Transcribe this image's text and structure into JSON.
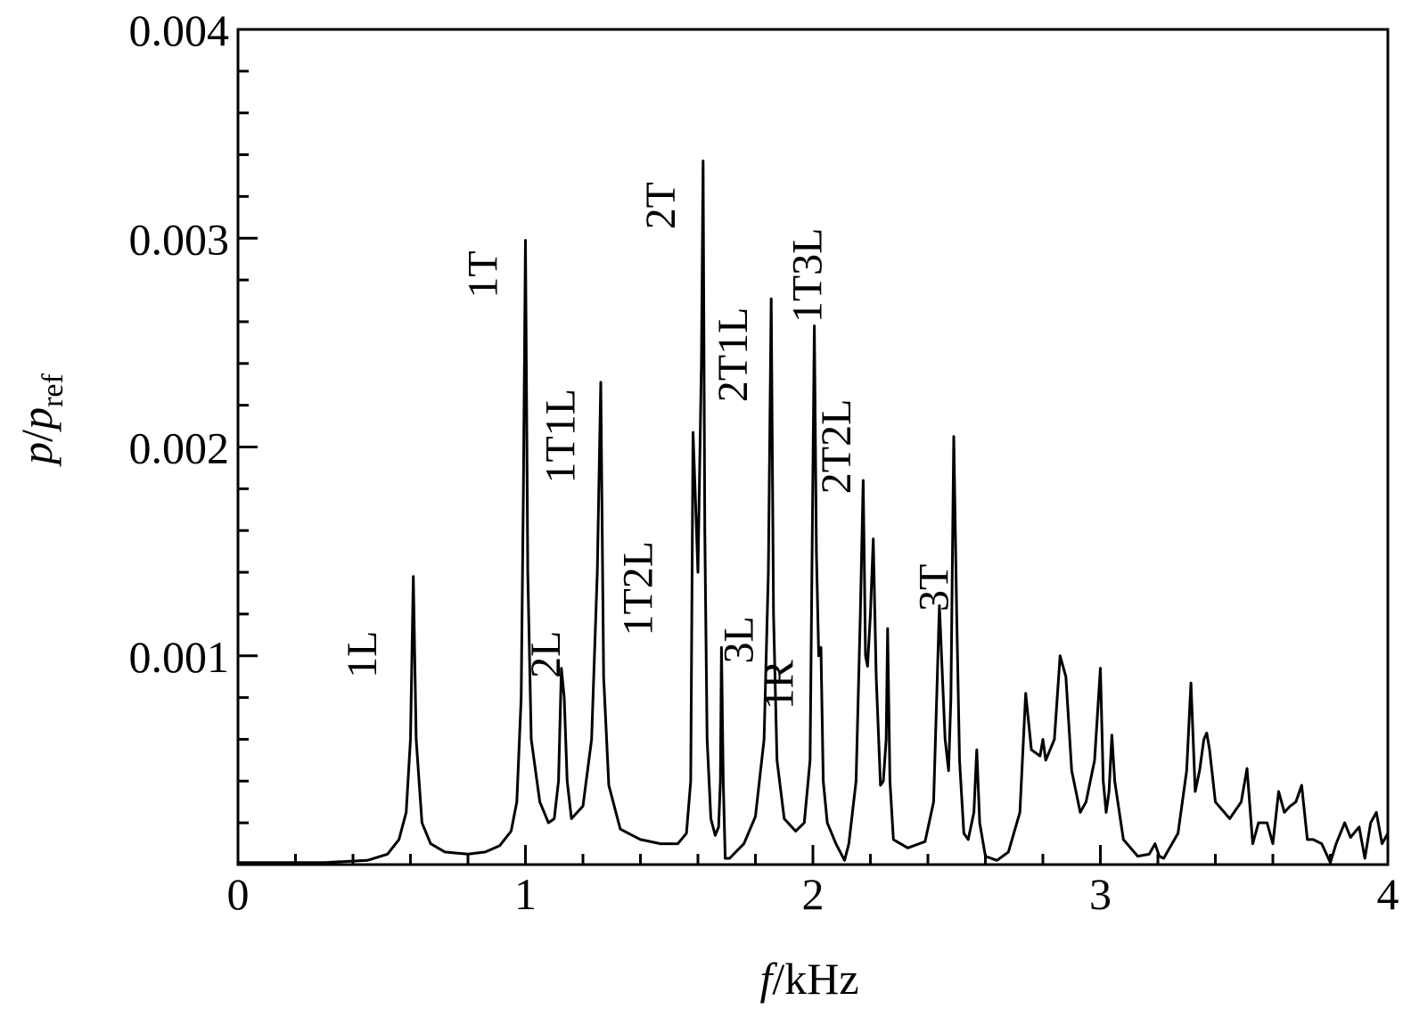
{
  "chart_data": {
    "type": "line",
    "xlabel": {
      "var": "f",
      "unit": "/kHz"
    },
    "ylabel": {
      "var": "p",
      "sep": "/",
      "var2": "p",
      "sub": "ref"
    },
    "xlim": [
      0,
      4
    ],
    "ylim": [
      0,
      0.004
    ],
    "grid": false,
    "x_ticks": [
      {
        "value": 0,
        "label": "0"
      },
      {
        "value": 1,
        "label": "1"
      },
      {
        "value": 2,
        "label": "2"
      },
      {
        "value": 3,
        "label": "3"
      },
      {
        "value": 4,
        "label": "4"
      }
    ],
    "y_ticks": [
      {
        "value": 0.001,
        "label": "0.001"
      },
      {
        "value": 0.002,
        "label": "0.002"
      },
      {
        "value": 0.003,
        "label": "0.003"
      },
      {
        "value": 0.004,
        "label": "0.004"
      }
    ],
    "x_minor_step": 0.2,
    "y_minor_step": 0.0002,
    "annotations": [
      {
        "text": "1L",
        "x": 0.48,
        "y": 0.00112
      },
      {
        "text": "1T",
        "x": 0.9,
        "y": 0.00294
      },
      {
        "text": "2L",
        "x": 1.12,
        "y": 0.00112
      },
      {
        "text": "1T1L",
        "x": 1.17,
        "y": 0.00228
      },
      {
        "text": "1T2L",
        "x": 1.44,
        "y": 0.00155
      },
      {
        "text": "2T",
        "x": 1.52,
        "y": 0.00327
      },
      {
        "text": "2T1L",
        "x": 1.77,
        "y": 0.00267
      },
      {
        "text": "3L",
        "x": 1.79,
        "y": 0.00119
      },
      {
        "text": "1T3L",
        "x": 2.03,
        "y": 0.00305
      },
      {
        "text": "1R",
        "x": 1.93,
        "y": 0.00098
      },
      {
        "text": "2T2L",
        "x": 2.13,
        "y": 0.00223
      },
      {
        "text": "3T",
        "x": 2.47,
        "y": 0.00144
      }
    ],
    "series": [
      {
        "points": [
          [
            0.0,
            1e-05
          ],
          [
            0.3,
            1e-05
          ],
          [
            0.45,
            2e-05
          ],
          [
            0.52,
            5e-05
          ],
          [
            0.56,
            0.00012
          ],
          [
            0.585,
            0.00025
          ],
          [
            0.6,
            0.0006
          ],
          [
            0.61,
            0.00138
          ],
          [
            0.62,
            0.0006
          ],
          [
            0.64,
            0.0002
          ],
          [
            0.67,
            0.0001
          ],
          [
            0.72,
            6e-05
          ],
          [
            0.8,
            5e-05
          ],
          [
            0.86,
            6e-05
          ],
          [
            0.91,
            9e-05
          ],
          [
            0.95,
            0.00016
          ],
          [
            0.97,
            0.0003
          ],
          [
            0.985,
            0.0008
          ],
          [
            0.993,
            0.0018
          ],
          [
            1.0,
            0.00299
          ],
          [
            1.008,
            0.0014
          ],
          [
            1.02,
            0.0006
          ],
          [
            1.05,
            0.0003
          ],
          [
            1.08,
            0.0002
          ],
          [
            1.1,
            0.00022
          ],
          [
            1.115,
            0.0004
          ],
          [
            1.125,
            0.00094
          ],
          [
            1.135,
            0.0008
          ],
          [
            1.145,
            0.0004
          ],
          [
            1.16,
            0.00022
          ],
          [
            1.2,
            0.00028
          ],
          [
            1.23,
            0.0006
          ],
          [
            1.25,
            0.0014
          ],
          [
            1.262,
            0.00231
          ],
          [
            1.272,
            0.0009
          ],
          [
            1.29,
            0.00038
          ],
          [
            1.33,
            0.00017
          ],
          [
            1.4,
            0.00012
          ],
          [
            1.47,
            0.0001
          ],
          [
            1.53,
            0.0001
          ],
          [
            1.56,
            0.00015
          ],
          [
            1.575,
            0.0004
          ],
          [
            1.583,
            0.00207
          ],
          [
            1.59,
            0.0018
          ],
          [
            1.6,
            0.0014
          ],
          [
            1.612,
            0.0024
          ],
          [
            1.618,
            0.00337
          ],
          [
            1.624,
            0.0016
          ],
          [
            1.632,
            0.0006
          ],
          [
            1.645,
            0.00022
          ],
          [
            1.66,
            0.00014
          ],
          [
            1.672,
            0.00018
          ],
          [
            1.678,
            0.0004
          ],
          [
            1.682,
            0.00104
          ],
          [
            1.688,
            0.0004
          ],
          [
            1.695,
            3e-05
          ],
          [
            1.71,
            3e-05
          ],
          [
            1.76,
            0.0001
          ],
          [
            1.8,
            0.00023
          ],
          [
            1.83,
            0.0006
          ],
          [
            1.845,
            0.0014
          ],
          [
            1.855,
            0.00271
          ],
          [
            1.863,
            0.0012
          ],
          [
            1.875,
            0.0005
          ],
          [
            1.9,
            0.00022
          ],
          [
            1.94,
            0.00016
          ],
          [
            1.97,
            0.0002
          ],
          [
            1.99,
            0.0005
          ],
          [
            2.005,
            0.00258
          ],
          [
            2.012,
            0.0015
          ],
          [
            2.02,
            0.001
          ],
          [
            2.028,
            0.00104
          ],
          [
            2.036,
            0.0004
          ],
          [
            2.05,
            0.0002
          ],
          [
            2.08,
            0.0001
          ],
          [
            2.11,
            2e-05
          ],
          [
            2.125,
            0.0001
          ],
          [
            2.15,
            0.0004
          ],
          [
            2.165,
            0.0012
          ],
          [
            2.175,
            0.00184
          ],
          [
            2.183,
            0.001
          ],
          [
            2.19,
            0.00095
          ],
          [
            2.2,
            0.0012
          ],
          [
            2.21,
            0.00156
          ],
          [
            2.22,
            0.0009
          ],
          [
            2.235,
            0.00038
          ],
          [
            2.245,
            0.0004
          ],
          [
            2.255,
            0.0006
          ],
          [
            2.26,
            0.00113
          ],
          [
            2.268,
            0.0004
          ],
          [
            2.28,
            0.00012
          ],
          [
            2.33,
            8e-05
          ],
          [
            2.39,
            0.00011
          ],
          [
            2.42,
            0.0003
          ],
          [
            2.44,
            0.00124
          ],
          [
            2.46,
            0.0006
          ],
          [
            2.472,
            0.00045
          ],
          [
            2.48,
            0.0008
          ],
          [
            2.49,
            0.00205
          ],
          [
            2.5,
            0.0012
          ],
          [
            2.51,
            0.0005
          ],
          [
            2.525,
            0.00015
          ],
          [
            2.54,
            0.00012
          ],
          [
            2.56,
            0.00025
          ],
          [
            2.57,
            0.00055
          ],
          [
            2.58,
            0.0002
          ],
          [
            2.6,
            4e-05
          ],
          [
            2.64,
            2e-05
          ],
          [
            2.68,
            6e-05
          ],
          [
            2.72,
            0.00025
          ],
          [
            2.74,
            0.00082
          ],
          [
            2.76,
            0.00055
          ],
          [
            2.79,
            0.00052
          ],
          [
            2.8,
            0.0006
          ],
          [
            2.81,
            0.0005
          ],
          [
            2.84,
            0.0006
          ],
          [
            2.86,
            0.001
          ],
          [
            2.88,
            0.0009
          ],
          [
            2.9,
            0.00045
          ],
          [
            2.93,
            0.00025
          ],
          [
            2.95,
            0.0003
          ],
          [
            2.98,
            0.0005
          ],
          [
            3.0,
            0.00094
          ],
          [
            3.01,
            0.0004
          ],
          [
            3.02,
            0.00025
          ],
          [
            3.03,
            0.00035
          ],
          [
            3.04,
            0.00062
          ],
          [
            3.05,
            0.0004
          ],
          [
            3.08,
            0.00012
          ],
          [
            3.13,
            4e-05
          ],
          [
            3.17,
            5e-05
          ],
          [
            3.19,
            0.0001
          ],
          [
            3.205,
            4e-05
          ],
          [
            3.22,
            3e-05
          ],
          [
            3.27,
            0.00015
          ],
          [
            3.3,
            0.00045
          ],
          [
            3.315,
            0.00087
          ],
          [
            3.33,
            0.00035
          ],
          [
            3.345,
            0.00045
          ],
          [
            3.36,
            0.0006
          ],
          [
            3.37,
            0.00063
          ],
          [
            3.38,
            0.00055
          ],
          [
            3.4,
            0.0003
          ],
          [
            3.45,
            0.00022
          ],
          [
            3.49,
            0.0003
          ],
          [
            3.51,
            0.00046
          ],
          [
            3.53,
            0.0001
          ],
          [
            3.55,
            0.0002
          ],
          [
            3.58,
            0.0002
          ],
          [
            3.6,
            0.0001
          ],
          [
            3.62,
            0.00035
          ],
          [
            3.64,
            0.00025
          ],
          [
            3.66,
            0.00028
          ],
          [
            3.68,
            0.0003
          ],
          [
            3.7,
            0.00038
          ],
          [
            3.72,
            0.00012
          ],
          [
            3.74,
            0.00012
          ],
          [
            3.77,
            0.0001
          ],
          [
            3.8,
            1e-05
          ],
          [
            3.82,
            0.0001
          ],
          [
            3.85,
            0.0002
          ],
          [
            3.87,
            0.00013
          ],
          [
            3.9,
            0.00018
          ],
          [
            3.92,
            3e-05
          ],
          [
            3.94,
            0.0002
          ],
          [
            3.96,
            0.00025
          ],
          [
            3.98,
            0.0001
          ],
          [
            4.0,
            0.00015
          ]
        ]
      }
    ]
  }
}
